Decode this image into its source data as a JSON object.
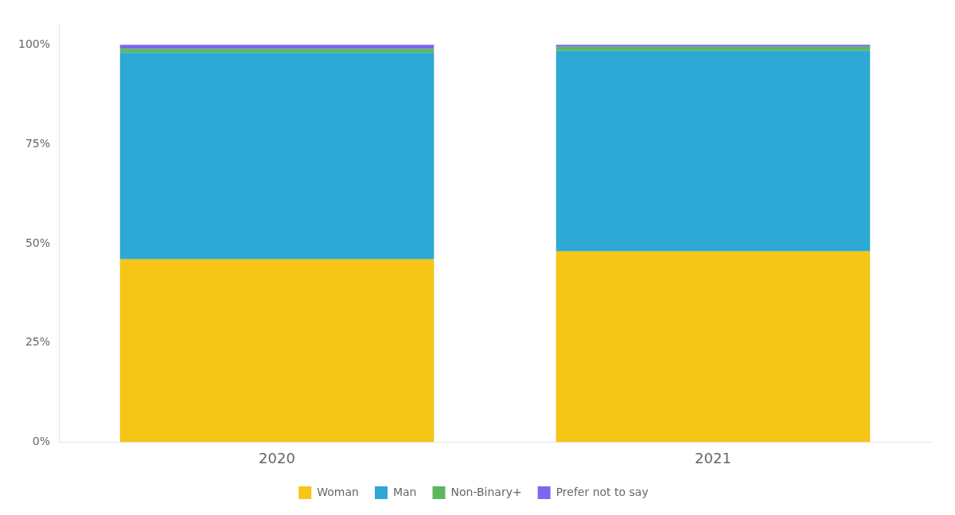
{
  "chart_data": {
    "type": "bar",
    "categories": [
      "2020",
      "2021"
    ],
    "series": [
      {
        "name": "Woman",
        "color": "#F5C518",
        "values": [
          0.46,
          0.48
        ]
      },
      {
        "name": "Man",
        "color": "#2EA8D5",
        "values": [
          0.52,
          0.505
        ]
      },
      {
        "name": "Non-Binary+",
        "color": "#5CB85C",
        "values": [
          0.01,
          0.01
        ]
      },
      {
        "name": "Prefer not to say",
        "color": "#7B68EE",
        "values": [
          0.01,
          0.005
        ]
      }
    ],
    "stacked": true,
    "ylim": [
      0,
      1.05
    ],
    "yticks": [
      {
        "value": 0.0,
        "label": "0%"
      },
      {
        "value": 0.25,
        "label": "25%"
      },
      {
        "value": 0.5,
        "label": "50%"
      },
      {
        "value": 0.75,
        "label": "75%"
      },
      {
        "value": 1.0,
        "label": "100%"
      }
    ],
    "grid": false,
    "legend": "bottom"
  }
}
